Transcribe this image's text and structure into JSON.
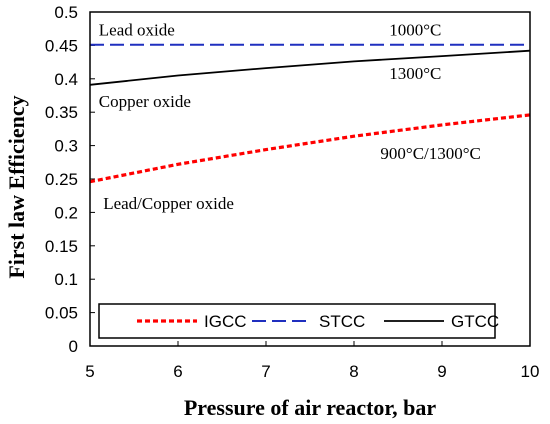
{
  "chart_data": {
    "type": "line",
    "xlabel": "Pressure of air reactor, bar",
    "ylabel": "First law Efficiency",
    "xlim": [
      5,
      10
    ],
    "ylim": [
      0,
      0.5
    ],
    "x_ticks": [
      "5",
      "6",
      "7",
      "8",
      "9",
      "10"
    ],
    "y_ticks": [
      "0",
      "0.05",
      "0.1",
      "0.15",
      "0.2",
      "0.25",
      "0.3",
      "0.35",
      "0.4",
      "0.45",
      "0.5"
    ],
    "grid": false,
    "legend_position": "bottom",
    "series": [
      {
        "name": "IGCC",
        "color": "#ff0000",
        "style": "dotted",
        "x": [
          5,
          6,
          7,
          8,
          9,
          10
        ],
        "values": [
          0.246,
          0.272,
          0.294,
          0.314,
          0.331,
          0.346
        ]
      },
      {
        "name": "STCC",
        "color": "#1f2fbf",
        "style": "dashed",
        "x": [
          5,
          6,
          7,
          8,
          9,
          10
        ],
        "values": [
          0.451,
          0.451,
          0.451,
          0.451,
          0.451,
          0.451
        ]
      },
      {
        "name": "GTCC",
        "color": "#000000",
        "style": "solid",
        "x": [
          5,
          6,
          7,
          8,
          9,
          10
        ],
        "values": [
          0.391,
          0.405,
          0.416,
          0.426,
          0.434,
          0.442
        ]
      }
    ],
    "annotations": [
      {
        "text": "Lead oxide",
        "x": 5.1,
        "y": 0.465
      },
      {
        "text": "1000°C",
        "x": 8.4,
        "y": 0.465
      },
      {
        "text": "1300°C",
        "x": 8.4,
        "y": 0.4
      },
      {
        "text": "Copper oxide",
        "x": 5.1,
        "y": 0.358
      },
      {
        "text": "900°C/1300°C",
        "x": 8.3,
        "y": 0.28
      },
      {
        "text": "Lead/Copper oxide",
        "x": 5.15,
        "y": 0.205
      }
    ]
  }
}
